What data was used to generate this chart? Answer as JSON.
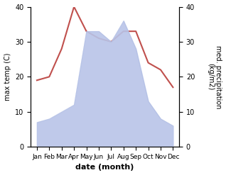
{
  "months": [
    "Jan",
    "Feb",
    "Mar",
    "Apr",
    "May",
    "Jun",
    "Jul",
    "Aug",
    "Sep",
    "Oct",
    "Nov",
    "Dec"
  ],
  "temperature": [
    19,
    20,
    28,
    40,
    33,
    31,
    30,
    33,
    33,
    24,
    22,
    17
  ],
  "precipitation": [
    7,
    8,
    10,
    12,
    33,
    33,
    30,
    36,
    28,
    13,
    8,
    6
  ],
  "temp_color": "#c0504d",
  "precip_fill_color": "#b8c4e8",
  "precip_edge_color": "#9aaad8",
  "left_ylabel": "max temp (C)",
  "right_ylabel": "med. precipitation\n(kg/m2)",
  "xlabel": "date (month)",
  "ylim": [
    0,
    40
  ],
  "yticks": [
    0,
    10,
    20,
    30,
    40
  ],
  "background_color": "#ffffff",
  "temp_linewidth": 1.5,
  "xlabel_fontsize": 8,
  "ylabel_fontsize": 7,
  "tick_fontsize": 7,
  "month_fontsize": 6.5
}
